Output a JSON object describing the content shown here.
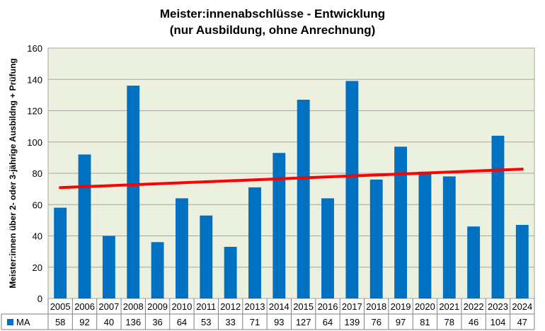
{
  "chart_data": {
    "type": "bar",
    "title": "Meister:innenabschlüsse - Entwicklung",
    "subtitle": "(nur Ausbildung, ohne Anrechnung)",
    "xlabel": "",
    "ylabel": "Meister:innen über 2- oder 3-jährige Ausbildng + Prüfung",
    "ylim": [
      0,
      160
    ],
    "yticks": [
      0,
      20,
      40,
      60,
      80,
      100,
      120,
      140,
      160
    ],
    "categories": [
      "2005",
      "2006",
      "2007",
      "2008",
      "2009",
      "2010",
      "2011",
      "2012",
      "2013",
      "2014",
      "2015",
      "2016",
      "2017",
      "2018",
      "2019",
      "2020",
      "2021",
      "2022",
      "2023",
      "2024"
    ],
    "series": [
      {
        "name": "MA",
        "values": [
          58,
          92,
          40,
          136,
          36,
          64,
          53,
          33,
          71,
          93,
          127,
          64,
          139,
          76,
          97,
          81,
          78,
          46,
          104,
          47
        ],
        "color": "#0070C0"
      }
    ],
    "trendline": {
      "color": "#FF0000",
      "type": "linear"
    },
    "grid": true,
    "plot_background": "#EBF1DE",
    "legend": "data-table"
  }
}
